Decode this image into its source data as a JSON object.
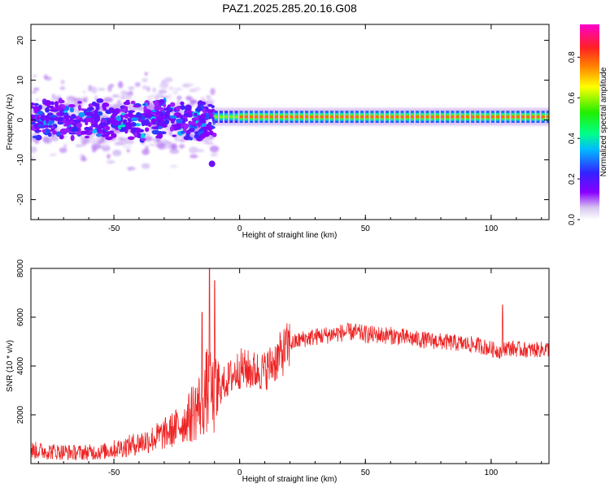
{
  "title": "PAZ1.2025.285.20.16.G08",
  "colors": {
    "snr_line": "#ee2222",
    "axis": "#000000",
    "background": "#ffffff"
  },
  "chart_data": [
    {
      "type": "heatmap",
      "title": "PAZ1.2025.285.20.16.G08",
      "xlabel": "Height of straight line (km)",
      "ylabel": "Frequency (Hz)",
      "xlim": [
        -83,
        123
      ],
      "ylim": [
        -25,
        24
      ],
      "xticks": [
        "-50",
        "0",
        "50",
        "100"
      ],
      "yticks": [
        "-20",
        "-10",
        "0",
        "10",
        "20"
      ],
      "colorbar": {
        "label": "Normalized spectral amplitude",
        "range": [
          0.0,
          1.0
        ],
        "ticks": [
          "0.0",
          "0.2",
          "0.4",
          "0.6",
          "0.8"
        ],
        "colormap": "rainbow (white-violet-blue-cyan-green-yellow-orange-red-magenta)"
      },
      "features": [
        {
          "x_range": [
            -83,
            -10
          ],
          "freq_center": 0,
          "freq_spread": 6,
          "amplitude": 0.3,
          "note": "scattered noisy blobs"
        },
        {
          "x_range": [
            -10,
            123
          ],
          "freq_center": 0.8,
          "freq_spread": 0.8,
          "amplitude": 0.95,
          "note": "strong narrow band"
        },
        {
          "x": -11,
          "freq": -11,
          "amplitude": 0.3
        }
      ]
    },
    {
      "type": "line",
      "xlabel": "Height of straight line (km)",
      "ylabel": "SNR (10 * v/v)",
      "xlim": [
        -83,
        123
      ],
      "ylim": [
        0,
        8000
      ],
      "xticks": [
        "-50",
        "0",
        "50",
        "100"
      ],
      "yticks": [
        "2000",
        "4000",
        "6000",
        "8000"
      ],
      "series": [
        {
          "name": "SNR",
          "x": [
            -83,
            -75,
            -65,
            -55,
            -45,
            -35,
            -28,
            -22,
            -18,
            -15,
            -13,
            -10,
            -7,
            -3,
            0,
            5,
            10,
            15,
            20,
            25,
            30,
            40,
            45,
            50,
            60,
            70,
            80,
            90,
            95,
            100,
            104,
            105,
            110,
            115,
            123
          ],
          "values": [
            550,
            500,
            450,
            480,
            700,
            1000,
            1300,
            1700,
            2200,
            2500,
            3000,
            2700,
            3200,
            3600,
            3900,
            3800,
            3800,
            4300,
            4900,
            5100,
            5200,
            5350,
            5400,
            5300,
            5250,
            5100,
            5000,
            4900,
            4850,
            4700,
            4600,
            4750,
            4700,
            4650,
            4700
          ],
          "spikes": [
            {
              "x": -12,
              "y": 8000
            },
            {
              "x": -10,
              "y": 7500
            },
            {
              "x": -15,
              "y": 6200
            },
            {
              "x": 104.5,
              "y": 6500
            }
          ]
        }
      ]
    }
  ]
}
